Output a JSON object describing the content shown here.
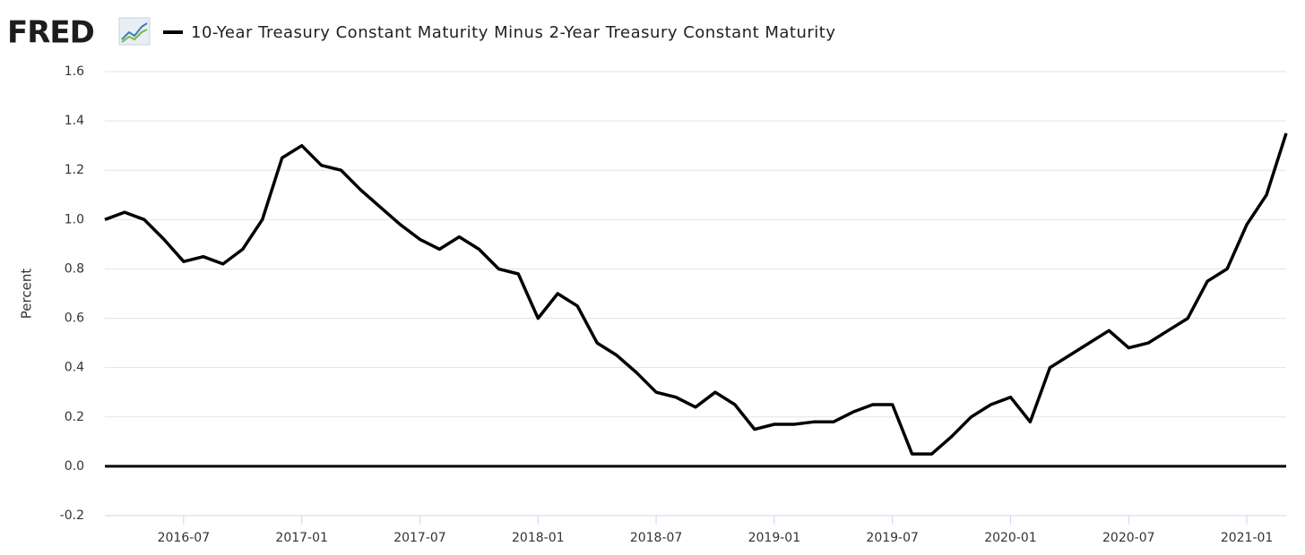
{
  "brand": "FRED",
  "chart_data": {
    "type": "line",
    "ylabel": "Percent",
    "x": [
      "2016-03",
      "2016-04",
      "2016-05",
      "2016-06",
      "2016-07",
      "2016-08",
      "2016-09",
      "2016-10",
      "2016-11",
      "2016-12",
      "2017-01",
      "2017-02",
      "2017-03",
      "2017-04",
      "2017-05",
      "2017-06",
      "2017-07",
      "2017-08",
      "2017-09",
      "2017-10",
      "2017-11",
      "2017-12",
      "2018-01",
      "2018-02",
      "2018-03",
      "2018-04",
      "2018-05",
      "2018-06",
      "2018-07",
      "2018-08",
      "2018-09",
      "2018-10",
      "2018-11",
      "2018-12",
      "2019-01",
      "2019-02",
      "2019-03",
      "2019-04",
      "2019-05",
      "2019-06",
      "2019-07",
      "2019-08",
      "2019-09",
      "2019-10",
      "2019-11",
      "2019-12",
      "2020-01",
      "2020-02",
      "2020-03",
      "2020-04",
      "2020-05",
      "2020-06",
      "2020-07",
      "2020-08",
      "2020-09",
      "2020-10",
      "2020-11",
      "2020-12",
      "2021-01",
      "2021-02",
      "2021-03"
    ],
    "series": [
      {
        "name": "10-Year Treasury Constant Maturity Minus 2-Year Treasury Constant Maturity",
        "color": "#000000",
        "values": [
          1.0,
          1.03,
          1.0,
          0.92,
          0.83,
          0.85,
          0.82,
          0.88,
          1.0,
          1.25,
          1.3,
          1.22,
          1.2,
          1.12,
          1.05,
          0.98,
          0.92,
          0.88,
          0.93,
          0.88,
          0.8,
          0.78,
          0.6,
          0.7,
          0.65,
          0.5,
          0.45,
          0.38,
          0.3,
          0.28,
          0.24,
          0.3,
          0.25,
          0.15,
          0.17,
          0.17,
          0.18,
          0.18,
          0.22,
          0.25,
          0.25,
          0.05,
          0.05,
          0.12,
          0.2,
          0.25,
          0.28,
          0.18,
          0.4,
          0.45,
          0.5,
          0.55,
          0.48,
          0.5,
          0.55,
          0.6,
          0.75,
          0.8,
          0.98,
          1.1,
          1.35
        ]
      }
    ],
    "xlim": [
      "2016-03",
      "2021-03"
    ],
    "xticks": [
      "2016-07",
      "2017-01",
      "2017-07",
      "2018-01",
      "2018-07",
      "2019-01",
      "2019-07",
      "2020-01",
      "2020-07",
      "2021-01"
    ],
    "ylim": [
      -0.2,
      1.6
    ],
    "yticks": [
      -0.2,
      {
        "value": 0,
        "label": "0.0"
      },
      0.2,
      0.4,
      0.6,
      0.8,
      {
        "value": 1,
        "label": "1.0"
      },
      1.2,
      1.4,
      1.6
    ],
    "grid": true
  }
}
